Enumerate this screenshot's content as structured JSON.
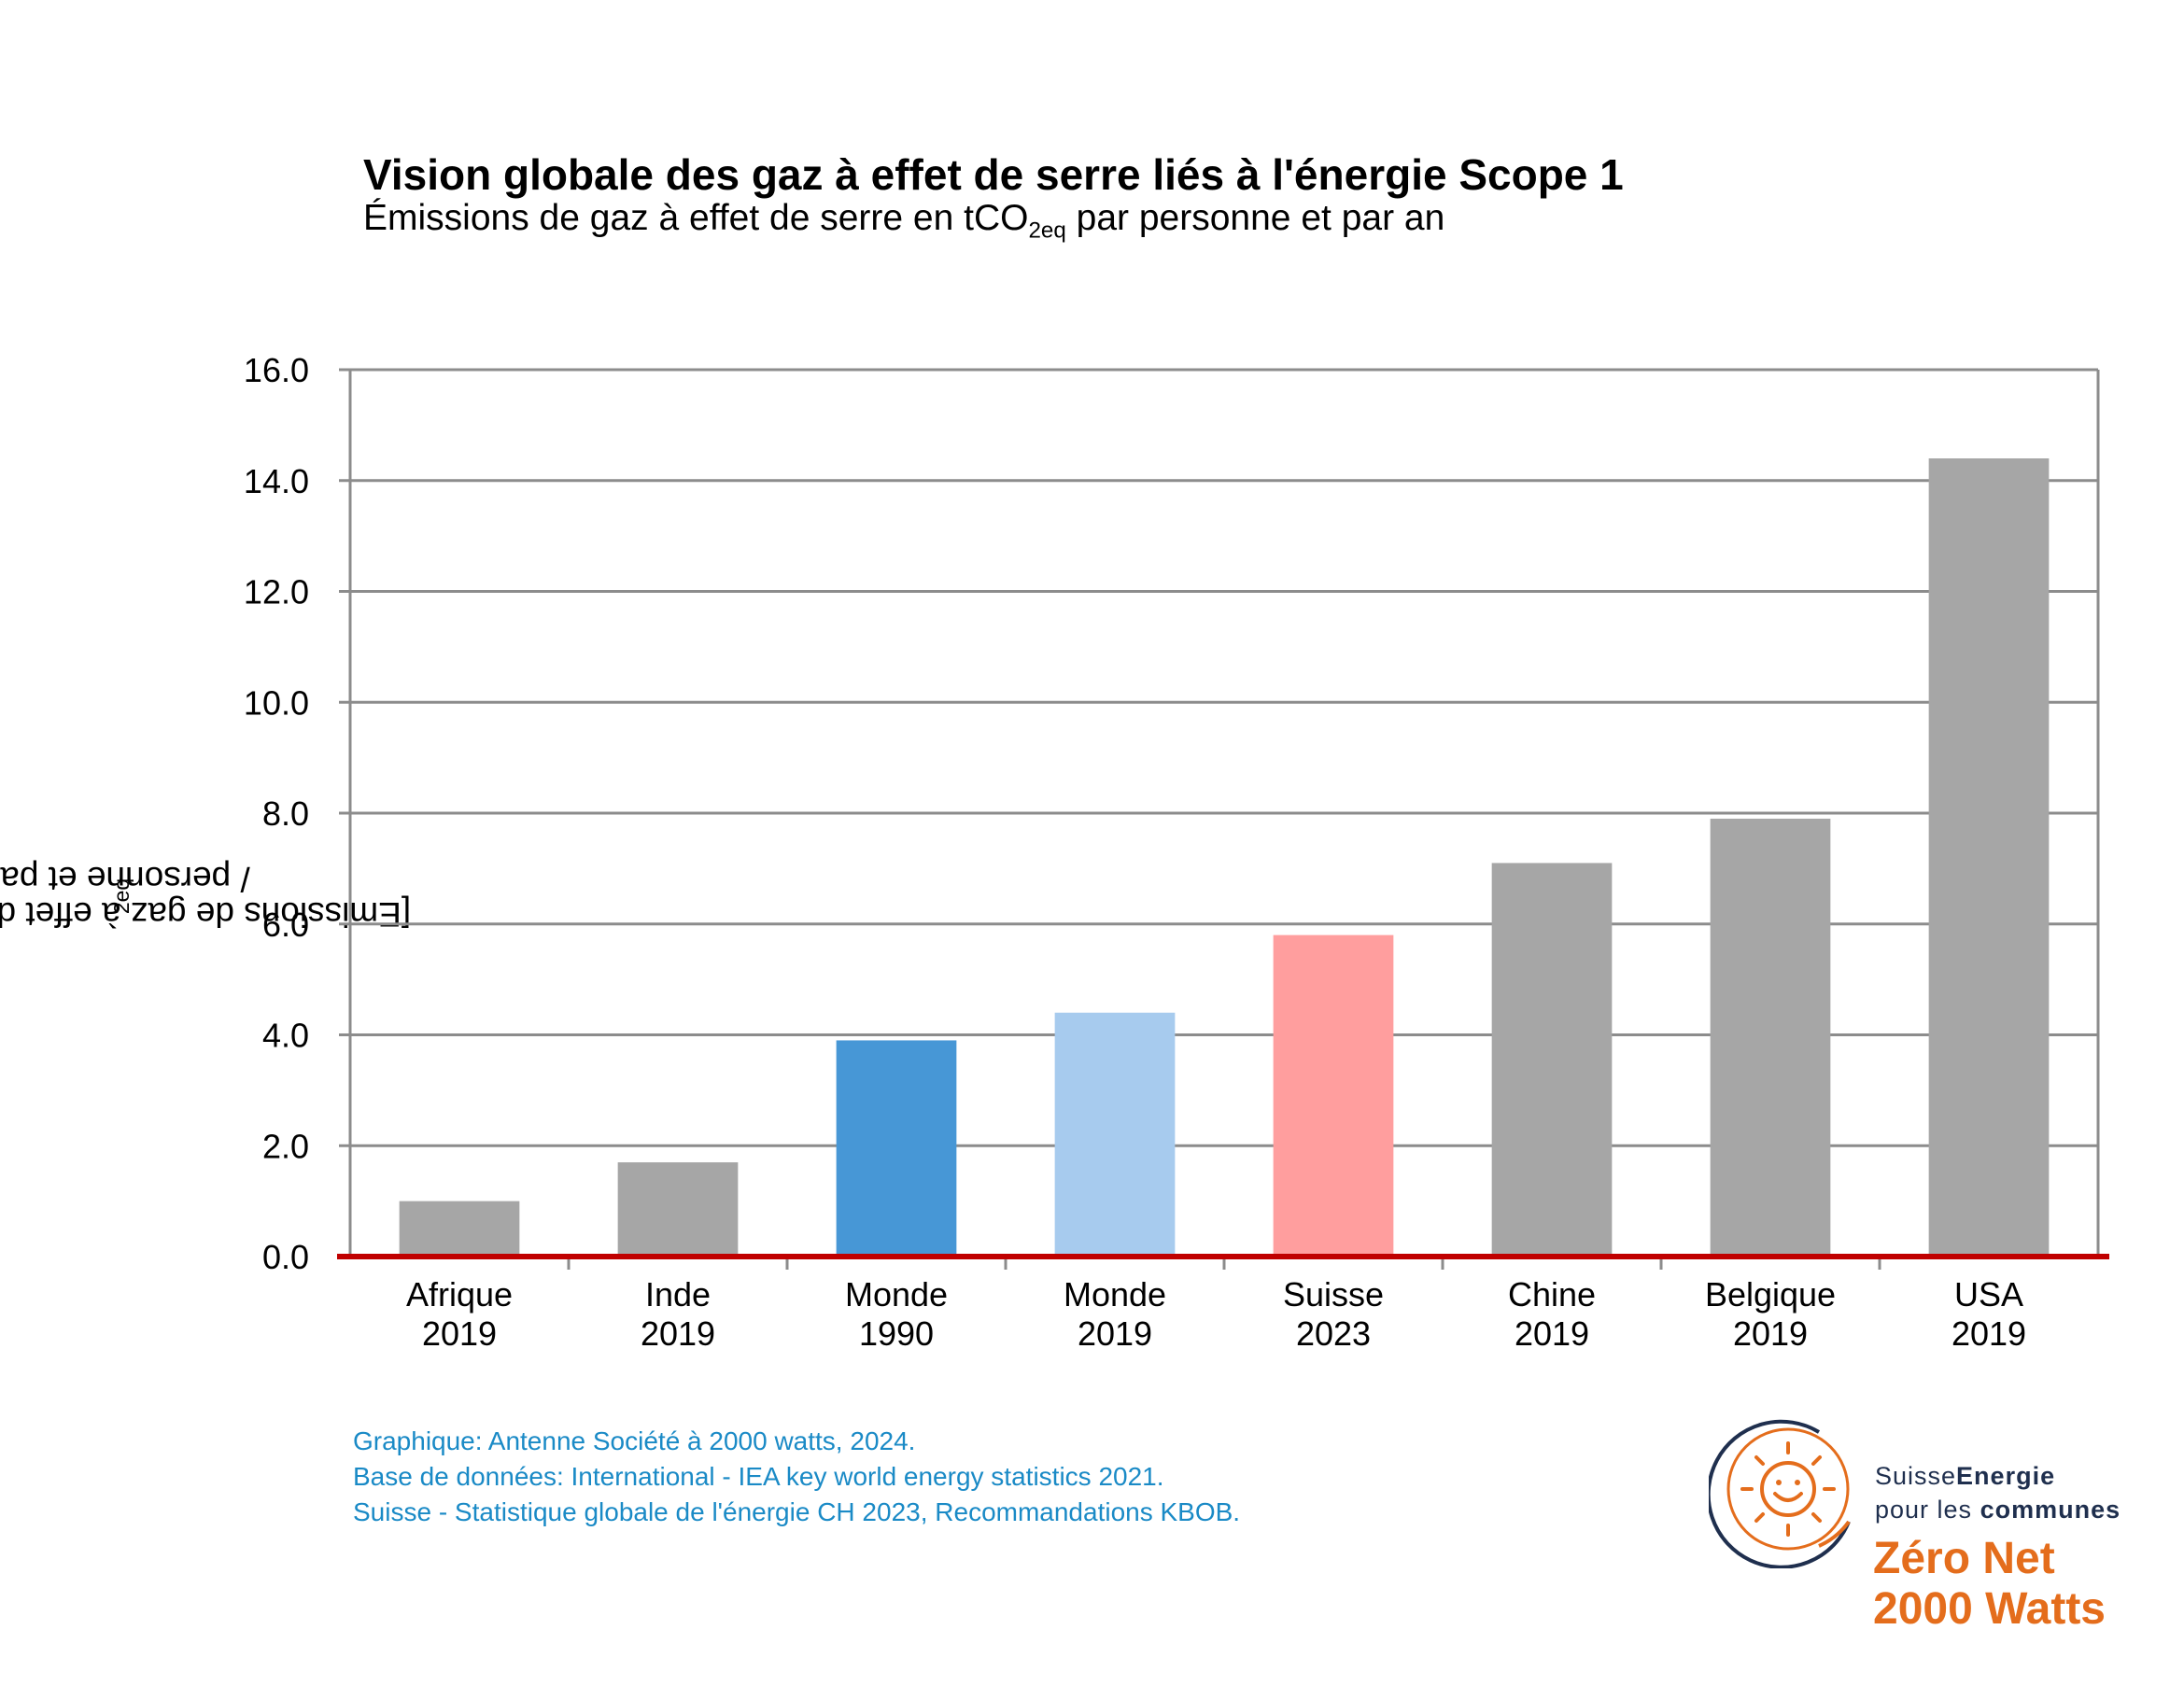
{
  "header": {
    "title": "Vision globale des gaz à effet de serre liés à l'énergie Scope 1",
    "subtitle_before": "Émissions de gaz à effet de serre en tCO",
    "subtitle_sub": "2eq",
    "subtitle_after": " par personne et par an"
  },
  "chart_data": {
    "type": "bar",
    "ylabel_before": "[Emissions de gaz à effet de serre en tCO",
    "ylabel_sub": "2eq",
    "ylabel_after": " / personne et par an]",
    "ylim": [
      0,
      16
    ],
    "yticks": [
      "0.0",
      "2.0",
      "4.0",
      "6.0",
      "8.0",
      "10.0",
      "12.0",
      "14.0",
      "16.0"
    ],
    "grid": true,
    "categories": [
      {
        "name": "Afrique",
        "year": "2019"
      },
      {
        "name": "Inde",
        "year": "2019"
      },
      {
        "name": "Monde",
        "year": "1990"
      },
      {
        "name": "Monde",
        "year": "2019"
      },
      {
        "name": "Suisse",
        "year": "2023"
      },
      {
        "name": "Chine",
        "year": "2019"
      },
      {
        "name": "Belgique",
        "year": "2019"
      },
      {
        "name": "USA",
        "year": "2019"
      }
    ],
    "values": [
      1.0,
      1.7,
      3.9,
      4.4,
      5.8,
      7.1,
      7.9,
      14.4
    ],
    "colors": [
      "#a6a6a6",
      "#a6a6a6",
      "#4797d6",
      "#a7cbee",
      "#ff9e9e",
      "#a6a6a6",
      "#a6a6a6",
      "#a6a6a6"
    ],
    "baseline_color": "#c00000",
    "grid_color": "#8c8c8c"
  },
  "source": {
    "line1": "Graphique: Antenne Société à 2000 watts, 2024.",
    "line2": "Base de données: International - IEA key world energy statistics 2021.",
    "line3": "Suisse - Statistique globale de l'énergie CH 2023, Recommandations KBOB."
  },
  "logo": {
    "org_part1": "Suisse",
    "org_part2": "Energie",
    "org2_part1": "pour les ",
    "org2_part2": "communes",
    "program_line1": "Zéro Net",
    "program_line2": "2000 Watts",
    "icon": "sun-smile-icon",
    "brand_color": "#e46d1c",
    "navy_color": "#1f2f4e"
  }
}
